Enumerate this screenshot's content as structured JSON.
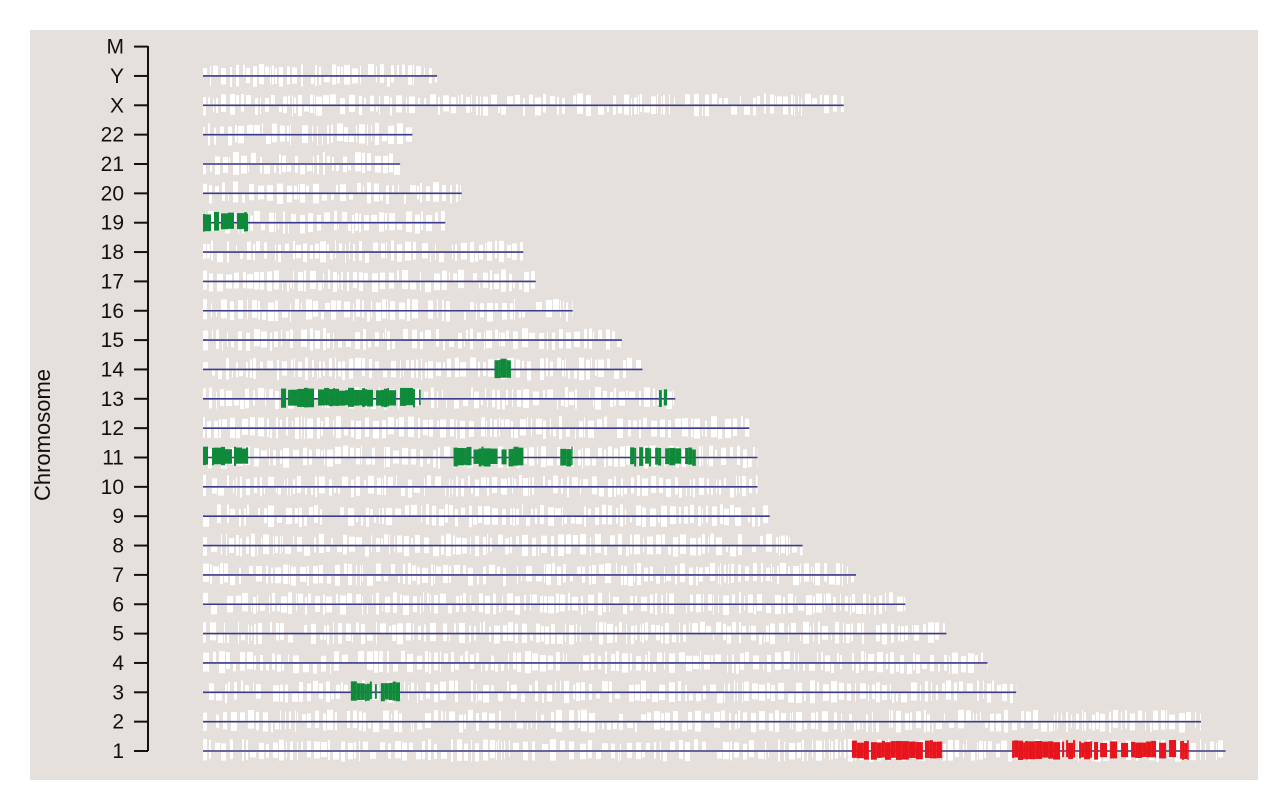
{
  "chart_data": {
    "type": "scatter",
    "ylabel": "Chromosome",
    "xlabel": "",
    "title": "",
    "categories": [
      "1",
      "2",
      "3",
      "4",
      "5",
      "6",
      "7",
      "8",
      "9",
      "10",
      "11",
      "12",
      "13",
      "14",
      "15",
      "16",
      "17",
      "18",
      "19",
      "20",
      "21",
      "22",
      "X",
      "Y",
      "M"
    ],
    "chromosome_lengths_mb": {
      "1": 249,
      "2": 243,
      "3": 198,
      "4": 191,
      "5": 181,
      "6": 171,
      "7": 159,
      "8": 146,
      "9": 138,
      "10": 135,
      "11": 135,
      "12": 133,
      "13": 115,
      "14": 107,
      "15": 102,
      "16": 90,
      "17": 81,
      "18": 78,
      "19": 59,
      "20": 63,
      "21": 48,
      "22": 51,
      "X": 156,
      "Y": 57,
      "M": 0
    },
    "highlighted_regions_mb": [
      {
        "chromosome": "1",
        "start": 158,
        "end": 180,
        "color": "#e8141c"
      },
      {
        "chromosome": "1",
        "start": 197,
        "end": 240,
        "color": "#e8141c"
      },
      {
        "chromosome": "3",
        "start": 36,
        "end": 48,
        "color": "#0e8a3a"
      },
      {
        "chromosome": "11",
        "start": 0,
        "end": 11,
        "color": "#0e8a3a"
      },
      {
        "chromosome": "11",
        "start": 61,
        "end": 78,
        "color": "#0e8a3a"
      },
      {
        "chromosome": "11",
        "start": 87,
        "end": 90,
        "color": "#0e8a3a"
      },
      {
        "chromosome": "11",
        "start": 104,
        "end": 120,
        "color": "#0e8a3a"
      },
      {
        "chromosome": "13",
        "start": 19,
        "end": 53,
        "color": "#0e8a3a"
      },
      {
        "chromosome": "13",
        "start": 111,
        "end": 113,
        "color": "#0e8a3a"
      },
      {
        "chromosome": "14",
        "start": 71,
        "end": 75,
        "color": "#0e8a3a"
      },
      {
        "chromosome": "19",
        "start": 0,
        "end": 11,
        "color": "#0e8a3a"
      }
    ],
    "gene_density_color": "#ffffff",
    "chromosome_line_color": "#3c3c8c",
    "panel_background": "#e6e0dc",
    "grid": false,
    "legend": "none"
  }
}
